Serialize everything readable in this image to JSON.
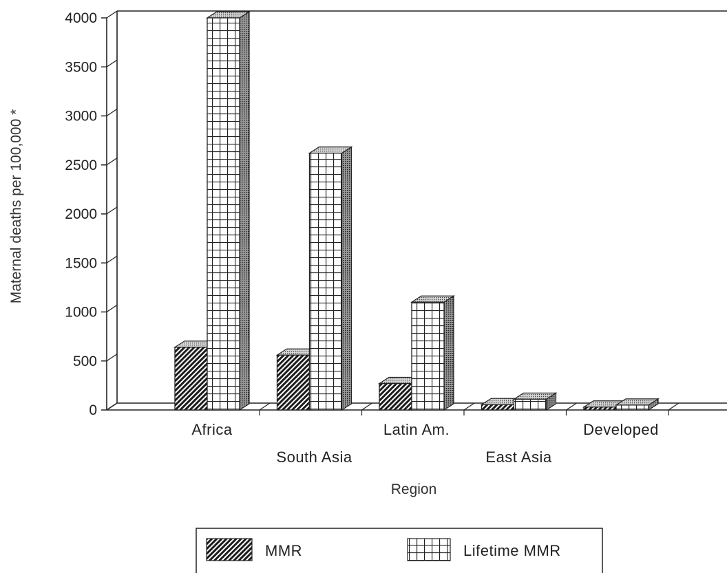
{
  "chart_data": {
    "type": "bar",
    "categories": [
      "Africa",
      "South Asia",
      "Latin Am.",
      "East Asia",
      "Developed"
    ],
    "series": [
      {
        "name": "MMR",
        "values": [
          640,
          560,
          270,
          55,
          30
        ]
      },
      {
        "name": "Lifetime MMR",
        "values": [
          4000,
          2620,
          1100,
          110,
          50
        ]
      }
    ],
    "title": "",
    "xlabel": "Region",
    "ylabel": "Maternal deaths per 100,000 *",
    "ylim": [
      0,
      4000
    ],
    "yticks": [
      "0",
      "500",
      "1000",
      "1500",
      "2000",
      "2500",
      "3000",
      "3500",
      "4000"
    ],
    "grid": false,
    "legend_position": "bottom"
  }
}
